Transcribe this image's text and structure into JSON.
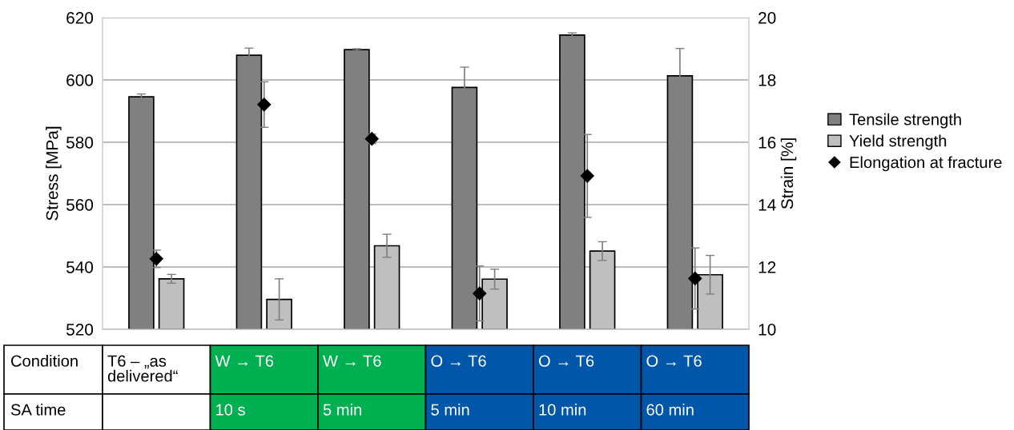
{
  "chart_data": {
    "type": "bar",
    "ylabel": "Stress [MPa]",
    "y2label": "Strain [%]",
    "categories": [
      "T6 – „as\ndelivered“",
      "W → T6",
      "W → T6",
      "O → T6",
      "O → T6",
      "O → T6"
    ],
    "series": [
      {
        "name": "Tensile strength",
        "color": "#808080",
        "values": [
          594.6,
          607.9,
          609.7,
          597.6,
          614.4,
          601.3
        ],
        "errors": [
          0.9,
          2.3,
          0.3,
          6.5,
          0.7,
          8.8
        ]
      },
      {
        "name": "Yield strength",
        "color": "#bfbfbf",
        "values": [
          536.2,
          529.6,
          546.8,
          536.1,
          545.1,
          537.5
        ],
        "errors": [
          1.4,
          6.6,
          3.7,
          3.2,
          3.0,
          6.2
        ]
      },
      {
        "name": "Elongation at fracture",
        "type": "scatter",
        "axis": "y2",
        "color": "#000000",
        "marker": "diamond",
        "values": [
          12.26,
          17.21,
          16.11,
          11.15,
          14.92,
          11.63
        ],
        "errors": [
          0.28,
          0.73,
          0.15,
          0.88,
          1.33,
          0.98
        ]
      }
    ],
    "ylim": [
      520,
      620
    ],
    "yticks": [
      520,
      540,
      560,
      580,
      600,
      620
    ],
    "y2lim": [
      10,
      20
    ],
    "y2ticks": [
      10,
      12,
      14,
      16,
      18,
      20
    ],
    "grid": "y",
    "legend": "right",
    "annotations": [
      "Condition",
      "SA time",
      "10 s",
      "5 min",
      "5 min",
      "10 min",
      "60 min"
    ]
  }
}
